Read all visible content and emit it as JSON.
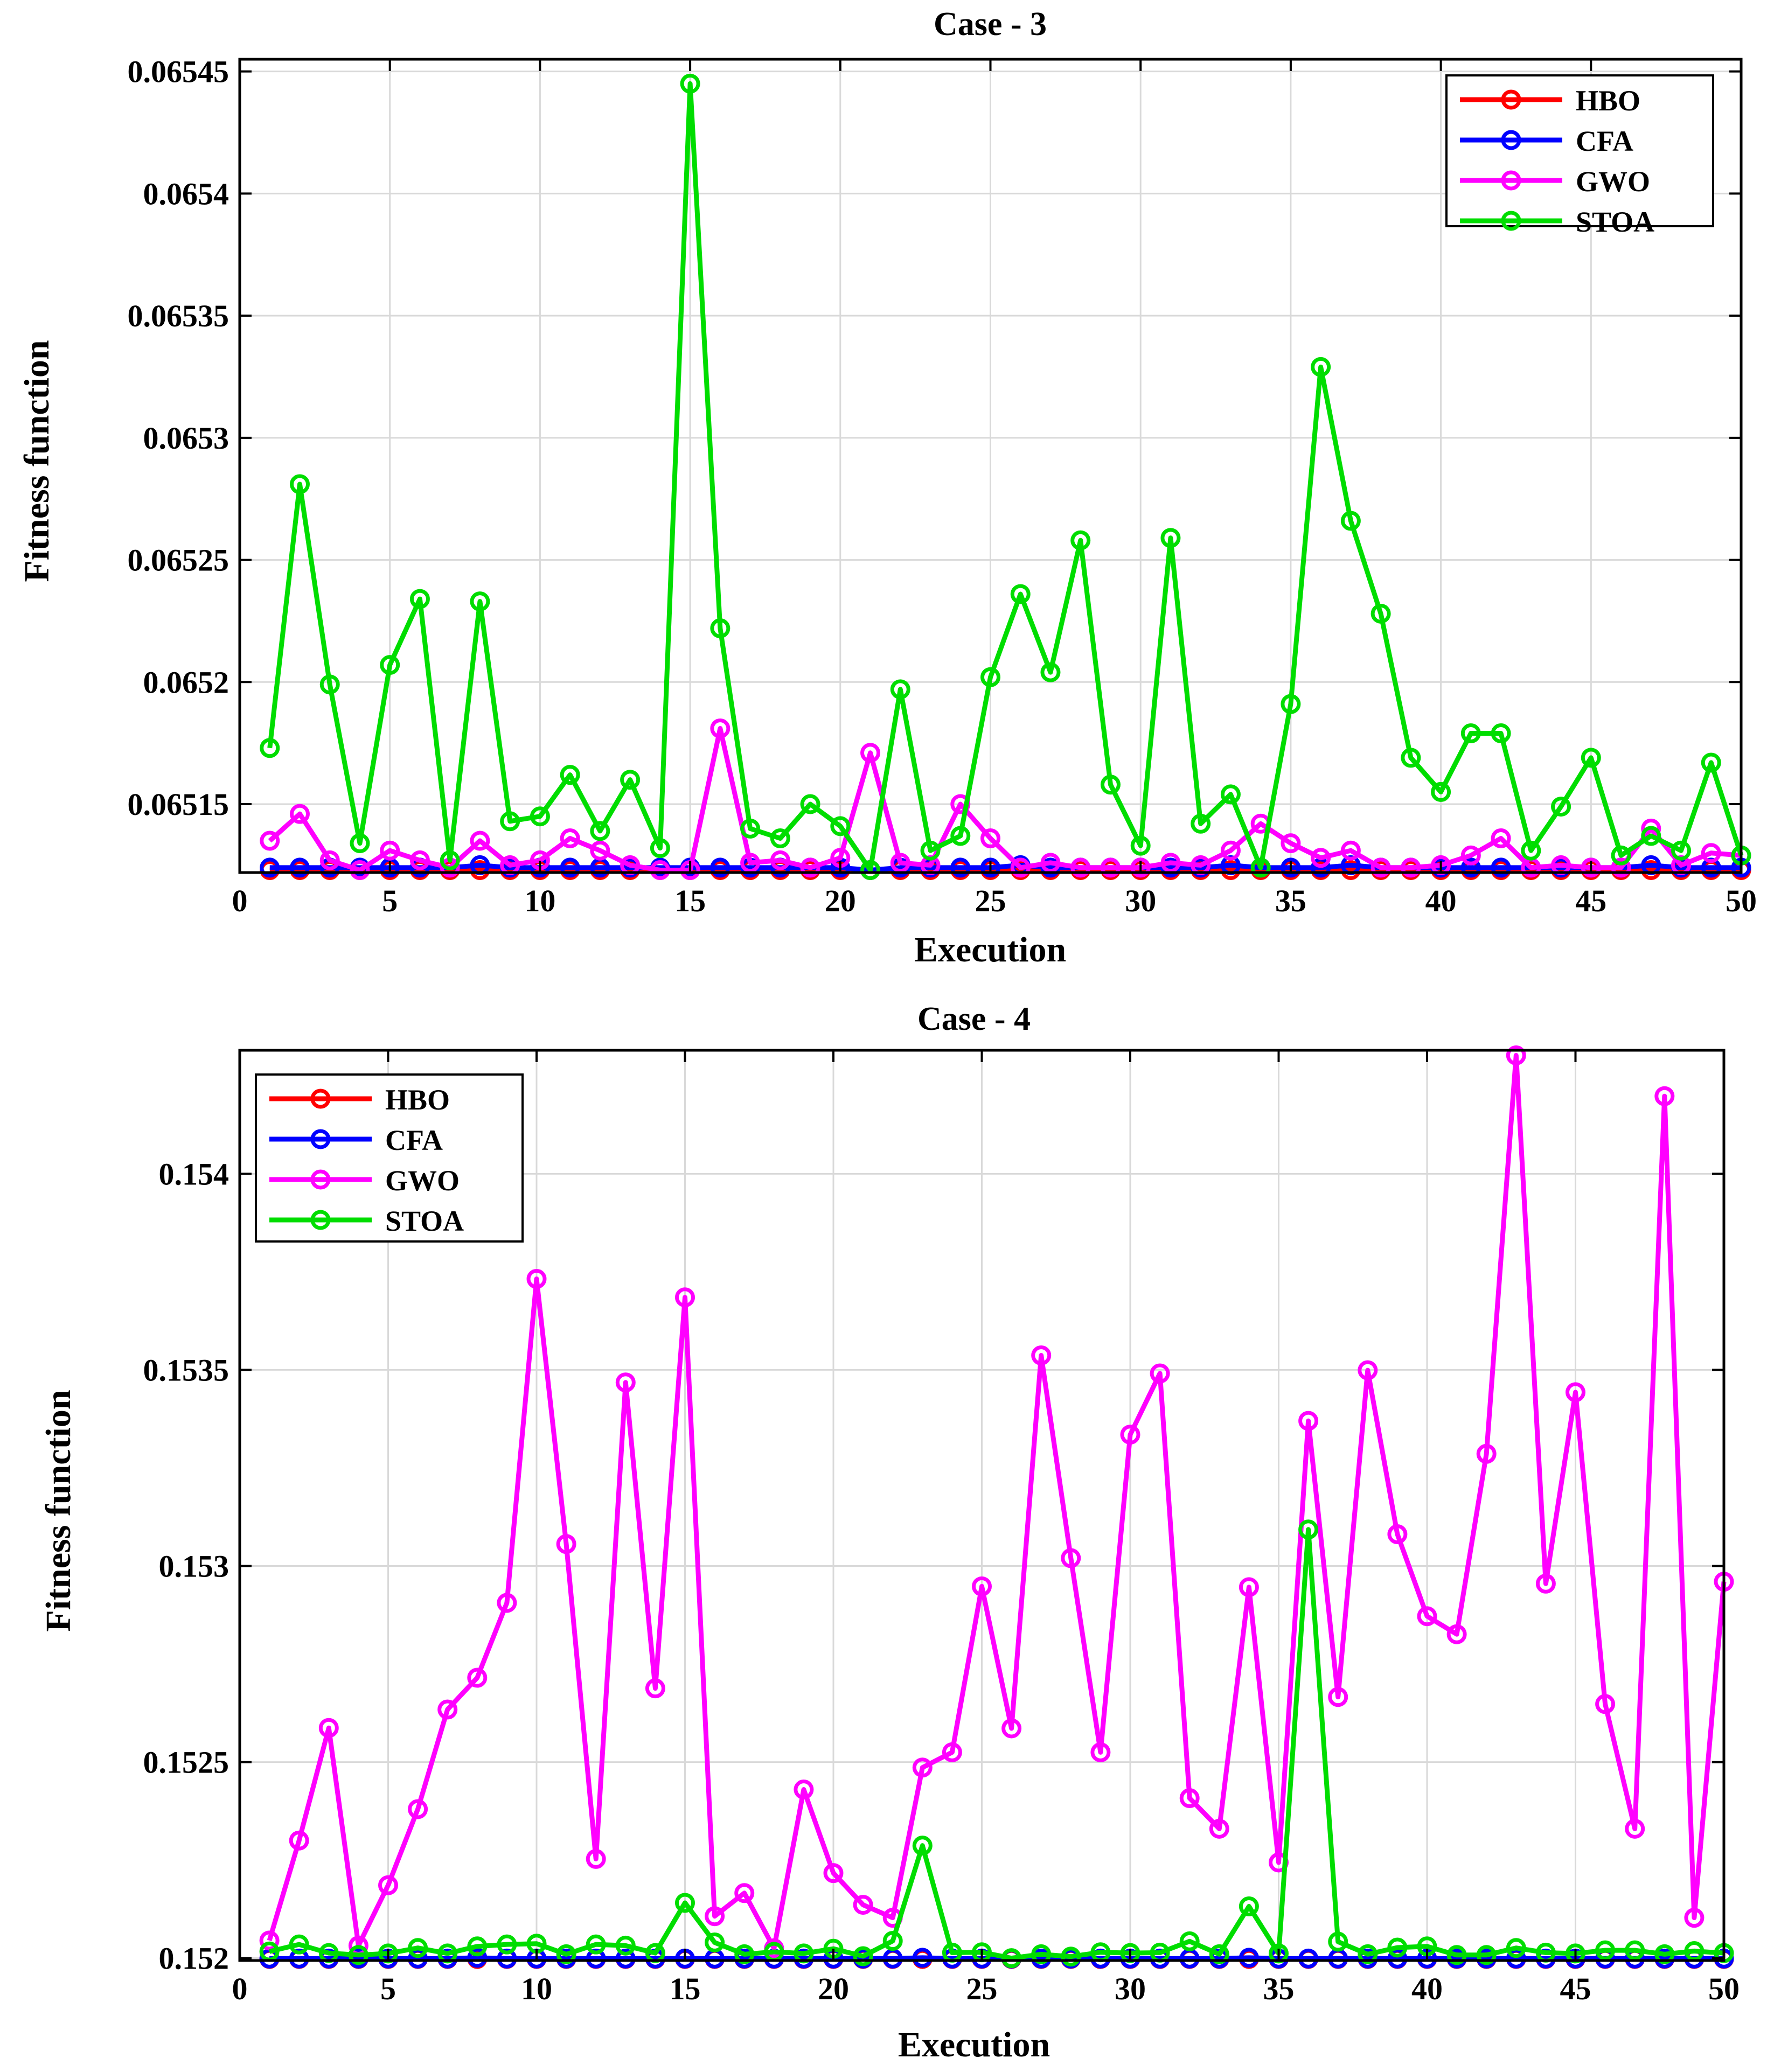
{
  "chart_data": [
    {
      "type": "line",
      "title": "Case - 3",
      "xlabel": "Execution",
      "ylabel": "Fitness function",
      "xlim": [
        0,
        50
      ],
      "ylim": [
        0.065122,
        0.065455
      ],
      "xticks": [
        0,
        5,
        10,
        15,
        20,
        25,
        30,
        35,
        40,
        45,
        50
      ],
      "xtick_labels": [
        "0",
        "5",
        "10",
        "15",
        "20",
        "25",
        "30",
        "35",
        "40",
        "45",
        "50"
      ],
      "yticks": [
        0.06515,
        0.0652,
        0.06525,
        0.0653,
        0.06535,
        0.0654,
        0.06545
      ],
      "ytick_labels": [
        "0.06515",
        "0.0652",
        "0.06525",
        "0.0653",
        "0.06535",
        "0.0654",
        "0.06545"
      ],
      "grid": true,
      "legend": "top-right",
      "series": [
        {
          "name": "HBO",
          "color": "#ff0000",
          "values": [
            0.065123,
            0.065123,
            0.065123,
            0.065123,
            0.065123,
            0.065123,
            0.065123,
            0.065123,
            0.065123,
            0.065123,
            0.065123,
            0.065123,
            0.065123,
            0.065123,
            0.065123,
            0.065123,
            0.065123,
            0.065123,
            0.065123,
            0.065123,
            0.065123,
            0.065123,
            0.065123,
            0.065123,
            0.065123,
            0.065123,
            0.065123,
            0.065123,
            0.065123,
            0.065123,
            0.065123,
            0.065123,
            0.065123,
            0.065123,
            0.065123,
            0.065123,
            0.065123,
            0.065123,
            0.065123,
            0.065123,
            0.065123,
            0.065123,
            0.065123,
            0.065123,
            0.065123,
            0.065123,
            0.065123,
            0.065123,
            0.065123,
            0.065123
          ]
        },
        {
          "name": "CFA",
          "color": "#0000ff",
          "values": [
            0.065124,
            0.065124,
            0.065124,
            0.065124,
            0.065124,
            0.065124,
            0.065124,
            0.065125,
            0.065124,
            0.065124,
            0.065124,
            0.065124,
            0.065124,
            0.065124,
            0.065124,
            0.065124,
            0.065124,
            0.065124,
            0.065124,
            0.065124,
            0.065123,
            0.065124,
            0.065124,
            0.065124,
            0.065124,
            0.065125,
            0.065124,
            0.065124,
            0.065124,
            0.065124,
            0.065124,
            0.065124,
            0.065125,
            0.065124,
            0.065124,
            0.065124,
            0.065125,
            0.065124,
            0.065124,
            0.065124,
            0.065124,
            0.065124,
            0.065124,
            0.065124,
            0.065124,
            0.065124,
            0.065125,
            0.065124,
            0.065124,
            0.065124
          ]
        },
        {
          "name": "GWO",
          "color": "#ff00ff",
          "values": [
            0.065135,
            0.065146,
            0.065127,
            0.065123,
            0.065131,
            0.065127,
            0.065124,
            0.065135,
            0.065125,
            0.065127,
            0.065136,
            0.065131,
            0.065125,
            0.065123,
            0.065123,
            0.065181,
            0.065126,
            0.065127,
            0.065124,
            0.065128,
            0.065171,
            0.065126,
            0.065125,
            0.06515,
            0.065136,
            0.065124,
            0.065126,
            0.065124,
            0.065124,
            0.065124,
            0.065126,
            0.065125,
            0.065131,
            0.065142,
            0.065134,
            0.065128,
            0.065131,
            0.065124,
            0.065124,
            0.065125,
            0.065129,
            0.065136,
            0.065124,
            0.065125,
            0.065124,
            0.065124,
            0.06514,
            0.065125,
            0.06513,
            0.065129
          ]
        },
        {
          "name": "STOA",
          "color": "#00dd00",
          "values": [
            0.065173,
            0.065281,
            0.065199,
            0.065134,
            0.065207,
            0.065234,
            0.065127,
            0.065233,
            0.065143,
            0.065145,
            0.065162,
            0.065139,
            0.06516,
            0.065132,
            0.065445,
            0.065222,
            0.06514,
            0.065136,
            0.06515,
            0.065141,
            0.065123,
            0.065197,
            0.065131,
            0.065137,
            0.065202,
            0.065236,
            0.065204,
            0.065258,
            0.065158,
            0.065133,
            0.065259,
            0.065142,
            0.065154,
            0.065124,
            0.065191,
            0.065329,
            0.065266,
            0.065228,
            0.065169,
            0.065155,
            0.065179,
            0.065179,
            0.065131,
            0.065149,
            0.065169,
            0.065129,
            0.065137,
            0.065131,
            0.065167,
            0.065129
          ]
        }
      ]
    },
    {
      "type": "line",
      "title": "Case - 4",
      "xlabel": "Execution",
      "ylabel": "Fitness function",
      "xlim": [
        0,
        50
      ],
      "ylim": [
        0.151994,
        0.154315
      ],
      "xticks": [
        0,
        5,
        10,
        15,
        20,
        25,
        30,
        35,
        40,
        45,
        50
      ],
      "xtick_labels": [
        "0",
        "5",
        "10",
        "15",
        "20",
        "25",
        "30",
        "35",
        "40",
        "45",
        "50"
      ],
      "yticks": [
        0.152,
        0.1525,
        0.153,
        0.1535,
        0.154
      ],
      "ytick_labels": [
        "0.152",
        "0.1525",
        "0.153",
        "0.1535",
        "0.154"
      ],
      "grid": true,
      "legend": "top-left",
      "series": [
        {
          "name": "HBO",
          "color": "#ff0000",
          "values": [
            0.151998,
            0.151998,
            0.151998,
            0.151998,
            0.151998,
            0.151998,
            0.151998,
            0.151998,
            0.151998,
            0.151998,
            0.151998,
            0.151998,
            0.151998,
            0.151998,
            0.151998,
            0.151998,
            0.151998,
            0.151998,
            0.151998,
            0.151998,
            0.151998,
            0.151998,
            0.151998,
            0.151998,
            0.151998,
            0.151998,
            0.151998,
            0.151998,
            0.151998,
            0.151998,
            0.151998,
            0.151998,
            0.151998,
            0.151998,
            0.151998,
            0.151998,
            0.151998,
            0.151998,
            0.151998,
            0.151998,
            0.151998,
            0.151998,
            0.151998,
            0.151998,
            0.151998,
            0.151998,
            0.151998,
            0.151998,
            0.151998,
            0.151998
          ]
        },
        {
          "name": "CFA",
          "color": "#0000ff",
          "values": [
            0.151999,
            0.151999,
            0.151999,
            0.151999,
            0.151999,
            0.151999,
            0.151999,
            0.152001,
            0.151999,
            0.151999,
            0.151999,
            0.151999,
            0.151999,
            0.151999,
            0.151999,
            0.151999,
            0.151999,
            0.151999,
            0.151999,
            0.151999,
            0.151999,
            0.151999,
            0.152001,
            0.151999,
            0.151999,
            0.151999,
            0.151999,
            0.151999,
            0.151999,
            0.151999,
            0.151999,
            0.151999,
            0.151999,
            0.152001,
            0.151999,
            0.151999,
            0.151999,
            0.151999,
            0.151999,
            0.151999,
            0.151999,
            0.151999,
            0.151999,
            0.151999,
            0.151999,
            0.151999,
            0.151999,
            0.151999,
            0.151999,
            0.151999
          ]
        },
        {
          "name": "GWO",
          "color": "#ff00ff",
          "values": [
            0.152045,
            0.1523,
            0.152587,
            0.152032,
            0.152186,
            0.15238,
            0.152634,
            0.152715,
            0.152906,
            0.153732,
            0.153056,
            0.152253,
            0.153468,
            0.152688,
            0.153685,
            0.152107,
            0.152166,
            0.152025,
            0.15243,
            0.152217,
            0.152136,
            0.152103,
            0.152486,
            0.152525,
            0.152948,
            0.152586,
            0.153537,
            0.15302,
            0.152525,
            0.153335,
            0.153491,
            0.152408,
            0.15233,
            0.152946,
            0.152244,
            0.15337,
            0.152666,
            0.153499,
            0.153081,
            0.152872,
            0.152826,
            0.153286,
            0.154302,
            0.152955,
            0.153443,
            0.152648,
            0.15233,
            0.154198,
            0.152103,
            0.15296
          ]
        },
        {
          "name": "STOA",
          "color": "#00dd00",
          "values": [
            0.152017,
            0.152035,
            0.152013,
            0.152008,
            0.152012,
            0.152026,
            0.152012,
            0.15203,
            0.152035,
            0.152037,
            0.15201,
            0.152035,
            0.152032,
            0.152013,
            0.152141,
            0.15204,
            0.15201,
            0.152016,
            0.152012,
            0.152024,
            0.152005,
            0.152044,
            0.152287,
            0.152014,
            0.152015,
            0.152,
            0.15201,
            0.152004,
            0.152015,
            0.152013,
            0.152014,
            0.152043,
            0.15201,
            0.152132,
            0.152012,
            0.153093,
            0.152042,
            0.15201,
            0.152027,
            0.15203,
            0.152008,
            0.152008,
            0.152026,
            0.152014,
            0.152012,
            0.15202,
            0.15202,
            0.15201,
            0.152018,
            0.152013
          ]
        }
      ]
    }
  ]
}
